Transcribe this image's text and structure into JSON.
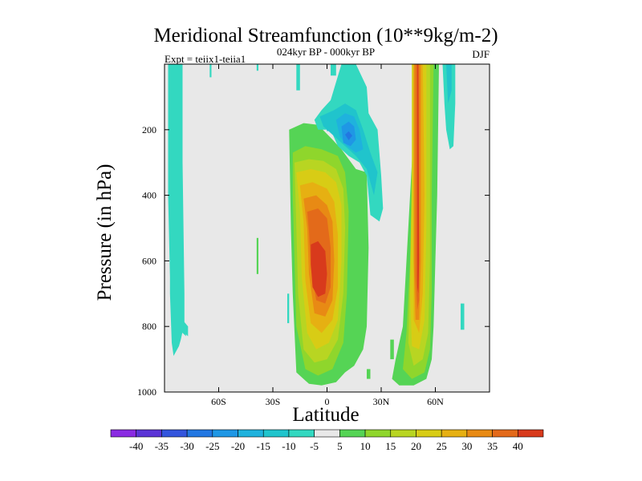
{
  "chart_data": {
    "type": "contour",
    "title": "Meridional Streamfunction (10**9kg/m-2)",
    "subtitle": "024kyr BP - 000kyr BP",
    "left_annotation": "Expt = teiix1-teiia1",
    "right_annotation": "DJF",
    "xlabel": "Latitude",
    "ylabel": "Pressure (in hPa)",
    "xlim": [
      -90,
      90
    ],
    "ylim": [
      1000,
      0
    ],
    "x_ticks": [
      {
        "value": -60,
        "label": "60S"
      },
      {
        "value": -30,
        "label": "30S"
      },
      {
        "value": 0,
        "label": "0"
      },
      {
        "value": 30,
        "label": "30N"
      },
      {
        "value": 60,
        "label": "60N"
      }
    ],
    "y_ticks": [
      {
        "value": 200,
        "label": "200"
      },
      {
        "value": 400,
        "label": "400"
      },
      {
        "value": 600,
        "label": "600"
      },
      {
        "value": 800,
        "label": "800"
      },
      {
        "value": 1000,
        "label": "1000"
      }
    ],
    "background_color": "#e8e8e8",
    "colorbar": {
      "labels": [
        "-40",
        "-35",
        "-30",
        "-25",
        "-20",
        "-15",
        "-10",
        "-5",
        "5",
        "10",
        "15",
        "20",
        "25",
        "30",
        "35",
        "40"
      ],
      "colors": [
        "#8a2be2",
        "#5b34d6",
        "#3355dd",
        "#2277e2",
        "#1f97e5",
        "#1fb2dd",
        "#20c4cc",
        "#33d8c0",
        "#e8e8e8",
        "#55d455",
        "#8fd62c",
        "#b8d522",
        "#d8cc15",
        "#e6b012",
        "#e88a14",
        "#e36a1a",
        "#d83a1c"
      ]
    },
    "features": [
      {
        "name": "sh-high-lat-negative-band",
        "level": -5,
        "lat_range": [
          -87,
          -79
        ],
        "p_range": [
          0,
          890
        ],
        "sign": "negative"
      },
      {
        "name": "equatorial-positive-cell",
        "max_level": 40,
        "lat_center": -2,
        "p_range": [
          180,
          980
        ],
        "sign": "positive"
      },
      {
        "name": "upper-tropical-negative-cell",
        "min_level": -25,
        "lat_center": 12,
        "p_range": [
          100,
          480
        ],
        "sign": "negative"
      },
      {
        "name": "nh-midlat-positive-column",
        "max_level": 40,
        "lat_center": 52,
        "p_range": [
          0,
          980
        ],
        "sign": "positive"
      },
      {
        "name": "nh-high-lat-negative-strip",
        "level": -5,
        "lat_range": [
          65,
          73
        ],
        "p_range": [
          0,
          260
        ],
        "sign": "negative"
      }
    ]
  }
}
